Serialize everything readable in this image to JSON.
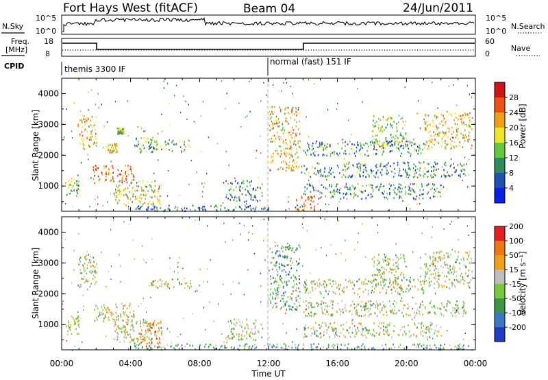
{
  "header": {
    "title": "Fort Hays West (fitACF)",
    "beam": "Beam 04",
    "date": "24/Jun/2011"
  },
  "top_panels": {
    "nsky_label": "N.Sky",
    "nsearch_label": "N.Search",
    "noise_ticks_left": [
      "10^5",
      "10^0"
    ],
    "noise_ticks_right": [
      "10^5",
      "10^0"
    ],
    "freq_label_line1": "Freq.",
    "freq_label_line2": "[MHz]",
    "freq_ticks": [
      "18",
      "8"
    ],
    "nave_label": "Nave",
    "nave_ticks": [
      "60",
      "0"
    ],
    "cpid_label": "CPID",
    "cpid_segments": [
      {
        "label": "themis 3300 IF",
        "start_hour": 0,
        "end_hour": 12
      },
      {
        "label": "normal (fast) 151 IF",
        "start_hour": 12,
        "end_hour": 24
      }
    ]
  },
  "chart_data": [
    {
      "type": "heatmap",
      "name": "power",
      "ylabel": "Slant Range [km]",
      "xlabel": "",
      "x_range_hours": [
        0,
        24
      ],
      "ylim": [
        180,
        4500
      ],
      "yticks": [
        "1000",
        "2000",
        "3000",
        "4000"
      ],
      "colorbar": {
        "label": "Power [dB]",
        "ticks": [
          "4",
          "8",
          "12",
          "16",
          "20",
          "24",
          "28"
        ],
        "colors": [
          "#0a1ee6",
          "#1e50b4",
          "#2d8c5a",
          "#64c83c",
          "#f0e628",
          "#f0a014",
          "#f05014",
          "#d21414"
        ]
      },
      "features": [
        {
          "t0": 0.2,
          "t1": 1.0,
          "r0": 700,
          "r1": 1300,
          "level": 0.45
        },
        {
          "t0": 0.9,
          "t1": 2.0,
          "r0": 2200,
          "r1": 3300,
          "level": 0.6
        },
        {
          "t0": 1.8,
          "t1": 4.2,
          "r0": 1100,
          "r1": 1700,
          "level": 0.78
        },
        {
          "t0": 2.6,
          "t1": 3.2,
          "r0": 2100,
          "r1": 2400,
          "level": 0.6
        },
        {
          "t0": 3.2,
          "t1": 3.6,
          "r0": 2700,
          "r1": 2900,
          "level": 0.5
        },
        {
          "t0": 3.0,
          "t1": 5.8,
          "r0": 400,
          "r1": 1200,
          "level": 0.55
        },
        {
          "t0": 4.2,
          "t1": 5.4,
          "r0": 2100,
          "r1": 2600,
          "level": 0.4
        },
        {
          "t0": 5.0,
          "t1": 7.5,
          "r0": 2200,
          "r1": 2500,
          "level": 0.4
        },
        {
          "t0": 9.5,
          "t1": 11.6,
          "r0": 500,
          "r1": 1200,
          "level": 0.3
        },
        {
          "t0": 12.0,
          "t1": 13.8,
          "r0": 1500,
          "r1": 3600,
          "level": 0.65
        },
        {
          "t0": 13.5,
          "t1": 14.7,
          "r0": 200,
          "r1": 700,
          "level": 0.75
        },
        {
          "t0": 14.0,
          "t1": 23.5,
          "r0": 1300,
          "r1": 1800,
          "level": 0.3
        },
        {
          "t0": 14.0,
          "t1": 21.0,
          "r0": 2000,
          "r1": 2500,
          "level": 0.3
        },
        {
          "t0": 14.0,
          "t1": 22.0,
          "r0": 600,
          "r1": 1100,
          "level": 0.3
        },
        {
          "t0": 18.0,
          "t1": 20.0,
          "r0": 2300,
          "r1": 3300,
          "level": 0.5
        },
        {
          "t0": 21.0,
          "t1": 23.8,
          "r0": 2200,
          "r1": 3400,
          "level": 0.6
        },
        {
          "t0": 4.2,
          "t1": 12.0,
          "r0": 200,
          "r1": 400,
          "level": 0.25
        }
      ]
    },
    {
      "type": "heatmap",
      "name": "velocity",
      "ylabel": "Slant Range [km]",
      "xlabel": "Time UT",
      "x_range_hours": [
        0,
        24
      ],
      "xticks": [
        "00:00",
        "04:00",
        "08:00",
        "12:00",
        "16:00",
        "20:00",
        "00:00"
      ],
      "ylim": [
        180,
        4500
      ],
      "yticks": [
        "1000",
        "2000",
        "3000",
        "4000"
      ],
      "colorbar": {
        "label": "Velocity [m s⁻¹]",
        "ticks": [
          "200",
          "100",
          "50",
          "15",
          "-15",
          "-50",
          "-100",
          "-200"
        ],
        "colors": [
          "#1e3cc8",
          "#3c78c8",
          "#3c9646",
          "#78c83c",
          "#bebebe",
          "#f0a014",
          "#f07814",
          "#e61e1e"
        ]
      },
      "features": [
        {
          "t0": 0.2,
          "t1": 1.0,
          "r0": 700,
          "r1": 1300,
          "level": 0.55
        },
        {
          "t0": 0.9,
          "t1": 2.0,
          "r0": 2200,
          "r1": 3300,
          "level": 0.5
        },
        {
          "t0": 1.8,
          "t1": 4.2,
          "r0": 1100,
          "r1": 1700,
          "level": 0.55
        },
        {
          "t0": 3.0,
          "t1": 5.8,
          "r0": 400,
          "r1": 1200,
          "level": 0.55
        },
        {
          "t0": 4.5,
          "t1": 5.8,
          "r0": 250,
          "r1": 1100,
          "level": 0.75
        },
        {
          "t0": 5.0,
          "t1": 7.5,
          "r0": 2200,
          "r1": 2500,
          "level": 0.5
        },
        {
          "t0": 9.5,
          "t1": 11.6,
          "r0": 500,
          "r1": 1200,
          "level": 0.5
        },
        {
          "t0": 12.0,
          "t1": 13.8,
          "r0": 1500,
          "r1": 3600,
          "level": 0.3
        },
        {
          "t0": 14.0,
          "t1": 23.5,
          "r0": 1300,
          "r1": 1800,
          "level": 0.5
        },
        {
          "t0": 14.0,
          "t1": 21.0,
          "r0": 2000,
          "r1": 2500,
          "level": 0.5
        },
        {
          "t0": 14.0,
          "t1": 22.0,
          "r0": 600,
          "r1": 1100,
          "level": 0.5
        },
        {
          "t0": 18.0,
          "t1": 20.0,
          "r0": 2300,
          "r1": 3300,
          "level": 0.5
        },
        {
          "t0": 21.0,
          "t1": 23.8,
          "r0": 2200,
          "r1": 3400,
          "level": 0.5
        },
        {
          "t0": 4.2,
          "t1": 23.8,
          "r0": 200,
          "r1": 400,
          "level": 0.35
        }
      ]
    }
  ]
}
